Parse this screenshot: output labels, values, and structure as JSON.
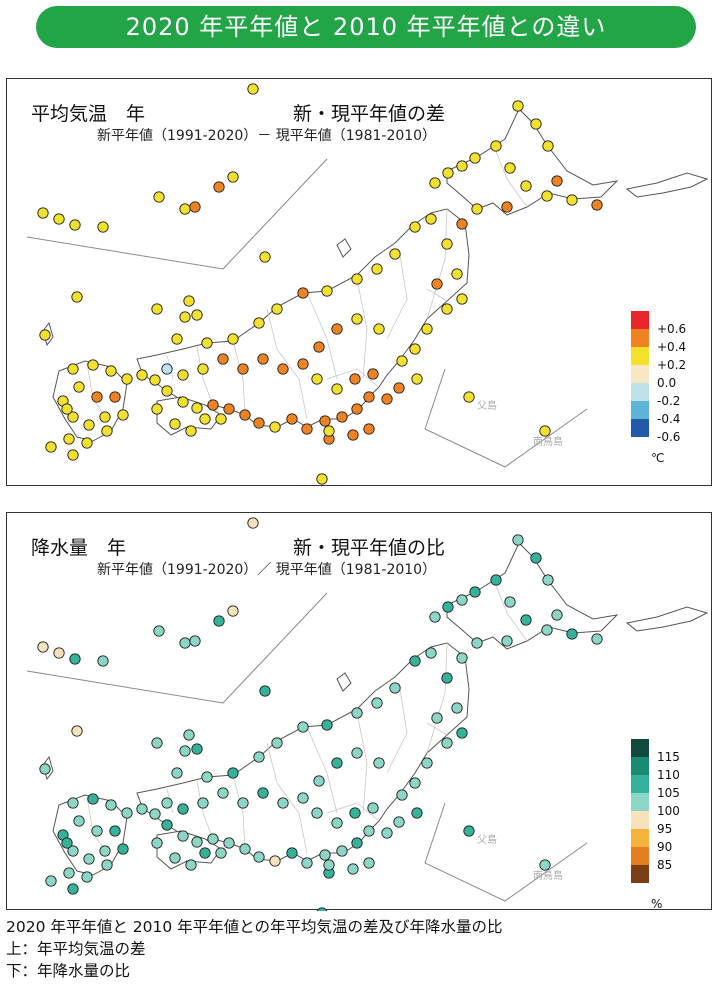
{
  "banner": "2020 年平年値と 2010 年平年値との違い",
  "panels": [
    {
      "title": "平均気温　年",
      "subtitle": "新・現平年値の差",
      "description": "新平年値（1991-2020）－ 現平年値（1981-2010）",
      "island_labels": [
        "父島",
        "南鳥島"
      ],
      "legend": {
        "unit": "℃",
        "labels": [
          "+0.6",
          "+0.4",
          "+0.2",
          "0.0",
          "-0.2",
          "-0.4",
          "-0.6"
        ],
        "colors": [
          "#e8262b",
          "#ef8322",
          "#f4e12b",
          "#f7e7c2",
          "#bfe1ec",
          "#5cb5d6",
          "#1f5ba8"
        ]
      }
    },
    {
      "title": "降水量　年",
      "subtitle": "新・現平年値の比",
      "description": "新平年値（1991-2020）／ 現平年値（1981-2010）",
      "island_labels": [
        "父島",
        "南鳥島"
      ],
      "legend": {
        "unit": "%",
        "labels": [
          "115",
          "110",
          "105",
          "100",
          "95",
          "90",
          "85"
        ],
        "colors": [
          "#0f4a3c",
          "#1a8a72",
          "#35b29a",
          "#8cd6c6",
          "#f8e2bd",
          "#f3b33c",
          "#e27d22",
          "#7a3d14"
        ]
      }
    }
  ],
  "caption": [
    "2020 年平年値と 2010 年平年値との年平均気温の差及び年降水量の比",
    "上：年平均気温の差",
    "下：年降水量の比"
  ]
}
